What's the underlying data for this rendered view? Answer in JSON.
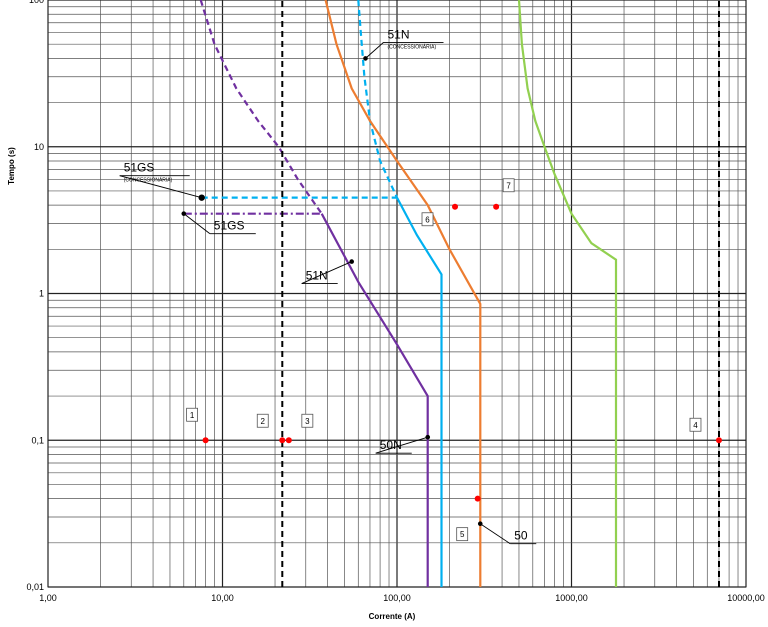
{
  "chart_data": {
    "type": "line",
    "xscale": "log",
    "yscale": "log",
    "xlim": [
      1,
      10000
    ],
    "ylim": [
      0.01,
      100
    ],
    "grid": true,
    "xlabel": "Corrente (A)",
    "ylabel": "Tempo (s)",
    "x_ticks": [
      {
        "value": 1,
        "label": "1,00"
      },
      {
        "value": 10,
        "label": "10,00"
      },
      {
        "value": 100,
        "label": "100,00"
      },
      {
        "value": 1000,
        "label": "1000,00"
      },
      {
        "value": 10000,
        "label": "10000,00"
      }
    ],
    "y_ticks": [
      {
        "value": 100,
        "label": "100"
      },
      {
        "value": 10,
        "label": "10"
      },
      {
        "value": 1,
        "label": "1"
      },
      {
        "value": 0.1,
        "label": "0,1"
      },
      {
        "value": 0.01,
        "label": "0,01"
      }
    ],
    "series": [
      {
        "color": "#7030a0",
        "dash": "6,4",
        "points": [
          [
            7.5,
            100
          ],
          [
            9,
            50
          ],
          [
            12,
            25
          ],
          [
            16,
            15
          ],
          [
            21,
            10
          ],
          [
            27,
            6
          ],
          [
            37,
            3.5
          ]
        ]
      },
      {
        "color": "#7030a0",
        "dash": "",
        "points": [
          [
            37,
            3.5
          ],
          [
            60,
            1.2
          ],
          [
            100,
            0.45
          ],
          [
            150,
            0.2
          ],
          [
            150,
            0.01
          ]
        ]
      },
      {
        "color": "#7030a0",
        "dash": "8,3,2,3",
        "points": [
          [
            6,
            3.5
          ],
          [
            37,
            3.5
          ]
        ]
      },
      {
        "color": "#00b0f0",
        "dash": "6,4",
        "points": [
          [
            60,
            100
          ],
          [
            62,
            60
          ],
          [
            65,
            30
          ],
          [
            70,
            15
          ],
          [
            80,
            8
          ],
          [
            100,
            4.5
          ]
        ]
      },
      {
        "color": "#00b0f0",
        "dash": "",
        "points": [
          [
            100,
            4.5
          ],
          [
            130,
            2.5
          ],
          [
            180,
            1.35
          ],
          [
            180,
            0.01
          ]
        ]
      },
      {
        "color": "#00b0f0",
        "dash": "6,4",
        "points": [
          [
            7.6,
            4.5
          ],
          [
            100,
            4.5
          ]
        ]
      },
      {
        "color": "#ed7d31",
        "dash": "",
        "points": [
          [
            39,
            100
          ],
          [
            45,
            50
          ],
          [
            55,
            25
          ],
          [
            70,
            15
          ],
          [
            100,
            8
          ],
          [
            150,
            4
          ],
          [
            200,
            2
          ],
          [
            300,
            0.85
          ],
          [
            300,
            0.01
          ]
        ]
      },
      {
        "color": "#92d050",
        "dash": "",
        "points": [
          [
            500,
            100
          ],
          [
            520,
            50
          ],
          [
            560,
            25
          ],
          [
            620,
            15
          ],
          [
            700,
            10
          ],
          [
            800,
            6.5
          ],
          [
            1000,
            3.5
          ],
          [
            1300,
            2.2
          ],
          [
            1800,
            1.7
          ],
          [
            1800,
            0.01
          ]
        ]
      },
      {
        "color": "#000000",
        "dash": "6,4",
        "points": [
          [
            22,
            0.01
          ],
          [
            22,
            100
          ]
        ]
      },
      {
        "color": "#000000",
        "dash": "6,4",
        "points": [
          [
            7000,
            0.01
          ],
          [
            7000,
            100
          ]
        ]
      }
    ],
    "red_points": [
      {
        "label": "1",
        "x": 8,
        "y": 0.1
      },
      {
        "label": "2",
        "x": 22,
        "y": 0.1
      },
      {
        "label": "3",
        "x": 24,
        "y": 0.1
      },
      {
        "label": "4",
        "x": 7000,
        "y": 0.1
      },
      {
        "label": "5",
        "x": 290,
        "y": 0.04
      },
      {
        "label": "6",
        "x": 215,
        "y": 3.9
      },
      {
        "label": "7",
        "x": 370,
        "y": 3.9
      }
    ],
    "annotations": [
      {
        "text": "51N",
        "subtext": "(CONCESSIONÁRIA)",
        "x": 66,
        "y": 40
      },
      {
        "text": "51GS",
        "subtext": "(CONCESSIONÁRIA)",
        "x": 7.6,
        "y": 4.5
      },
      {
        "text": "51GS",
        "subtext": "",
        "x": 6,
        "y": 3.5
      },
      {
        "text": "51N",
        "subtext": "",
        "x": 55,
        "y": 1.65
      },
      {
        "text": "50N",
        "subtext": "",
        "x": 150,
        "y": 0.105
      },
      {
        "text": "50",
        "subtext": "",
        "x": 300,
        "y": 0.027
      }
    ]
  }
}
